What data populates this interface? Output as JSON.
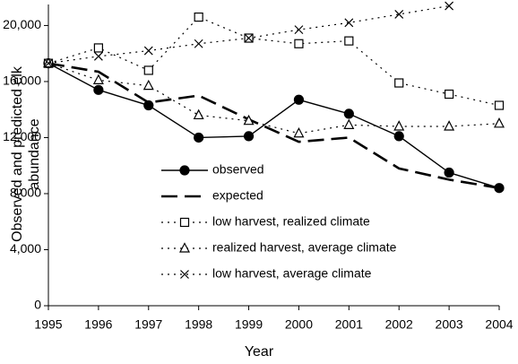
{
  "chart_data": {
    "type": "line",
    "xlabel": "Year",
    "ylabel": [
      "Observed and predicted elk",
      "abundance"
    ],
    "x": [
      1995,
      1996,
      1997,
      1998,
      1999,
      2000,
      2001,
      2002,
      2003,
      2004
    ],
    "xlim": [
      1995,
      2004
    ],
    "xticks": [
      1995,
      1996,
      1997,
      1998,
      1999,
      2000,
      2001,
      2002,
      2003,
      2004
    ],
    "ylim": [
      0,
      21500
    ],
    "yticks": [
      {
        "value": 0,
        "label": "0"
      },
      {
        "value": 4000,
        "label": "4,000"
      },
      {
        "value": 8000,
        "label": "8,000"
      },
      {
        "value": 12000,
        "label": "12,000"
      },
      {
        "value": 16000,
        "label": "16,000"
      },
      {
        "value": 20000,
        "label": "20,000"
      }
    ],
    "grid": false,
    "legend": "center",
    "series": [
      {
        "name": "observed",
        "color": "#000000",
        "marker": "circle",
        "line_style": "solid",
        "values": [
          17300,
          15400,
          14300,
          12000,
          12100,
          14700,
          13700,
          12100,
          9500,
          8400
        ]
      },
      {
        "name": "expected",
        "color": "#000000",
        "marker": "none",
        "line_style": "dashed",
        "values": [
          17300,
          16700,
          14500,
          15000,
          13300,
          11700,
          12000,
          9800,
          9000,
          8400
        ]
      },
      {
        "name": "low harvest, realized climate",
        "color": "#000000",
        "marker": "square",
        "line_style": "dotted",
        "values": [
          17300,
          18400,
          16800,
          20600,
          19100,
          18700,
          18900,
          15900,
          15100,
          14300
        ]
      },
      {
        "name": "realized harvest, average climate",
        "color": "#000000",
        "marker": "triangle",
        "line_style": "dotted",
        "values": [
          17300,
          16100,
          15700,
          13600,
          13200,
          12300,
          12900,
          12800,
          12800,
          13000
        ]
      },
      {
        "name": "low harvest, average climate",
        "color": "#000000",
        "marker": "x",
        "line_style": "dotted",
        "values": [
          17300,
          17800,
          18200,
          18700,
          19100,
          19700,
          20200,
          20800,
          21400,
          null
        ]
      }
    ]
  }
}
